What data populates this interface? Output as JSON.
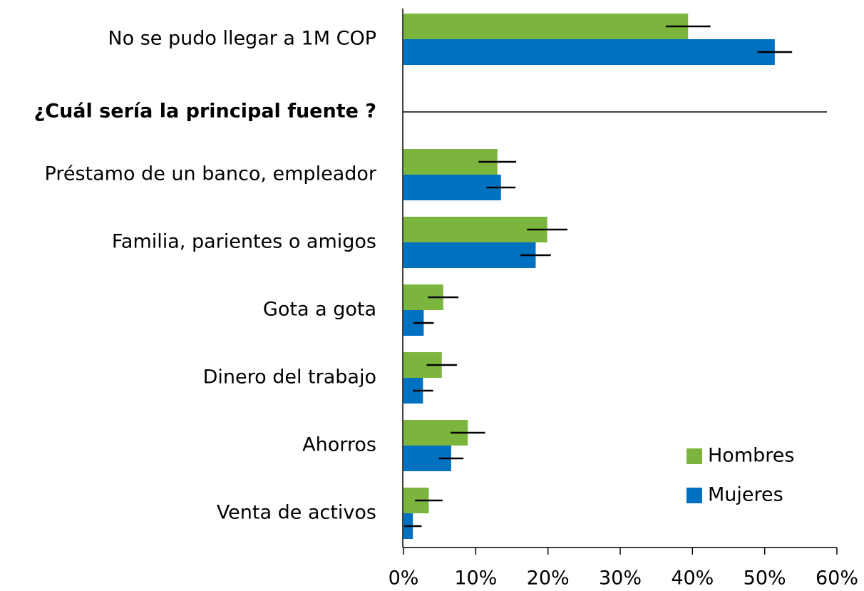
{
  "chart_data": {
    "type": "hbar",
    "categories": [
      "No se pudo llegar a 1M COP",
      "¿Cuál sería la principal fuente ?",
      "Préstamo de un banco, empleador",
      "Familia, parientes o amigos",
      "Gota a gota",
      "Dinero del trabajo",
      "Ahorros",
      "Venta de activos"
    ],
    "series": [
      {
        "name": "Hombres",
        "color": "#7cb53d",
        "values": [
          39.4,
          null,
          13.0,
          19.9,
          5.5,
          5.3,
          8.9,
          3.5
        ],
        "errors": [
          3.1,
          null,
          2.6,
          2.8,
          2.1,
          2.1,
          2.4,
          1.9
        ]
      },
      {
        "name": "Mujeres",
        "color": "#0070c0",
        "values": [
          51.4,
          null,
          13.5,
          18.3,
          2.8,
          2.7,
          6.6,
          1.3
        ],
        "errors": [
          2.4,
          null,
          2.0,
          2.1,
          1.4,
          1.4,
          1.7,
          1.2
        ]
      }
    ],
    "xlim": [
      0,
      60
    ],
    "xticks": [
      {
        "value": 0,
        "label": "0%"
      },
      {
        "value": 10,
        "label": "10%"
      },
      {
        "value": 20,
        "label": "20%"
      },
      {
        "value": 30,
        "label": "30%"
      },
      {
        "value": 40,
        "label": "40%"
      },
      {
        "value": 50,
        "label": "50%"
      },
      {
        "value": 60,
        "label": "60%"
      }
    ],
    "legend": "lower right"
  }
}
